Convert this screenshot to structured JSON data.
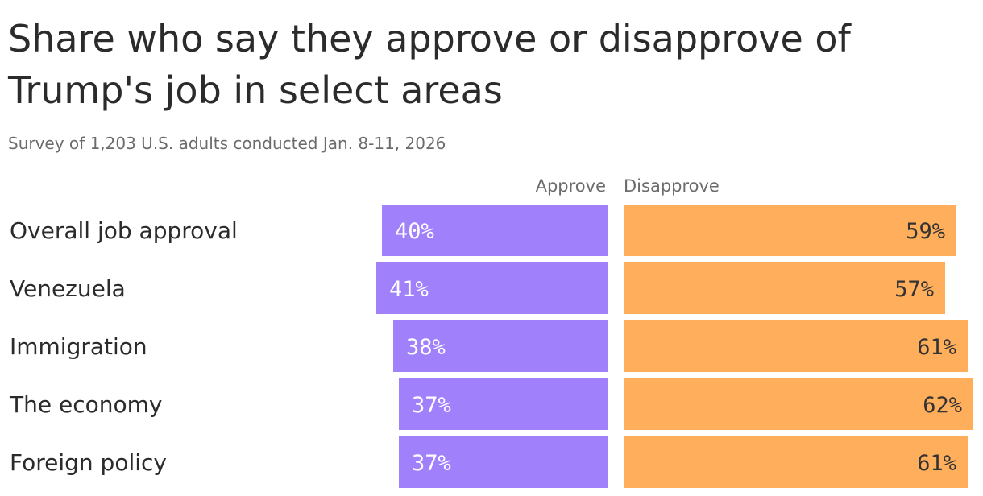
{
  "title": "Share who say they approve or disapprove of Trump's job in select areas",
  "subtitle": "Survey of 1,203 U.S. adults conducted Jan. 8-11, 2026",
  "colors": {
    "approve": "#a081fb",
    "disapprove": "#ffae5c",
    "label_text": "#2b2b2b",
    "header_text": "#6b6b6b"
  },
  "chart_data": {
    "type": "bar",
    "orientation": "horizontal-diverging",
    "categories": [
      "Overall job approval",
      "Venezuela",
      "Immigration",
      "The economy",
      "Foreign policy"
    ],
    "series": [
      {
        "name": "Approve",
        "values": [
          40,
          41,
          38,
          37,
          37
        ],
        "labels": [
          "40%",
          "41%",
          "38%",
          "37%",
          "37%"
        ]
      },
      {
        "name": "Disapprove",
        "values": [
          59,
          57,
          61,
          62,
          61
        ],
        "labels": [
          "59%",
          "57%",
          "61%",
          "62%",
          "61%"
        ]
      }
    ],
    "unit": "%"
  }
}
